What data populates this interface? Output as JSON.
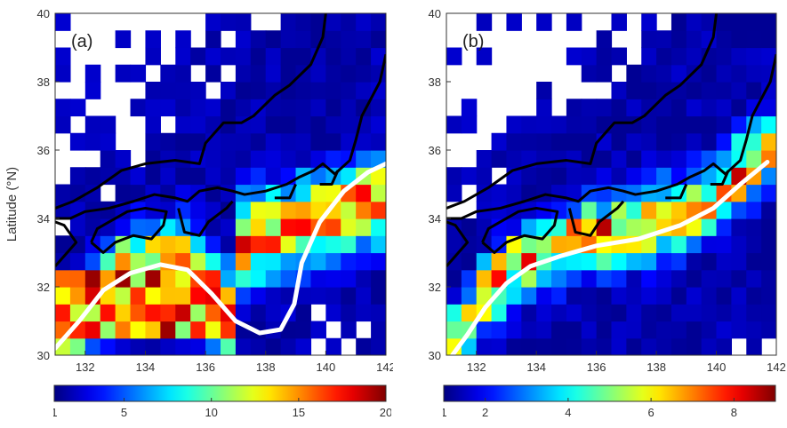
{
  "ylabel": "Latitude (°N)",
  "panels": [
    {
      "label": "(a)",
      "colorbar": {
        "ticks": [
          "1",
          "5",
          "10",
          "15",
          "20"
        ]
      }
    },
    {
      "label": "(b)",
      "colorbar": {
        "ticks": [
          "1",
          "2",
          "4",
          "6",
          "8"
        ]
      }
    }
  ],
  "chart_data": [
    {
      "type": "heatmap",
      "title": "",
      "panel_label": "(a)",
      "xlabel": "",
      "ylabel": "Latitude (°N)",
      "xlim": [
        131,
        142
      ],
      "ylim": [
        30,
        40
      ],
      "x_ticks": [
        132,
        134,
        136,
        138,
        140,
        142
      ],
      "y_ticks": [
        30,
        32,
        34,
        36,
        38,
        40
      ],
      "colorbar": {
        "min": 1,
        "max": 20,
        "ticks": [
          1,
          5,
          10,
          15,
          20
        ],
        "colormap": "jet"
      },
      "path_line": {
        "color": "#ffffff",
        "lon": [
          131.0,
          131.8,
          132.6,
          133.5,
          134.5,
          135.4,
          136.2,
          137.0,
          137.8,
          138.5,
          138.95,
          139.2,
          139.8,
          140.6,
          141.4,
          142.0
        ],
        "lat": [
          30.2,
          31.0,
          31.9,
          32.4,
          32.65,
          32.5,
          31.8,
          31.0,
          30.65,
          30.75,
          31.5,
          32.7,
          33.9,
          34.8,
          35.35,
          35.6
        ]
      },
      "coastlines": true
    },
    {
      "type": "heatmap",
      "title": "",
      "panel_label": "(b)",
      "xlabel": "",
      "ylabel": "",
      "xlim": [
        131,
        142
      ],
      "ylim": [
        30,
        40
      ],
      "x_ticks": [
        132,
        134,
        136,
        138,
        140,
        142
      ],
      "y_ticks": [
        30,
        32,
        34,
        36,
        38,
        40
      ],
      "colorbar": {
        "min": 1,
        "max": 9,
        "ticks": [
          1,
          2,
          4,
          6,
          8
        ],
        "colormap": "jet"
      },
      "path_line": {
        "color": "#ffffff",
        "lon": [
          131.2,
          131.7,
          132.3,
          133.0,
          133.8,
          134.8,
          136.0,
          137.4,
          138.8,
          139.9,
          140.8,
          141.7
        ],
        "lat": [
          30.0,
          30.6,
          31.4,
          32.1,
          32.6,
          32.9,
          33.2,
          33.4,
          33.8,
          34.3,
          35.0,
          35.65
        ]
      },
      "coastlines": true
    }
  ]
}
